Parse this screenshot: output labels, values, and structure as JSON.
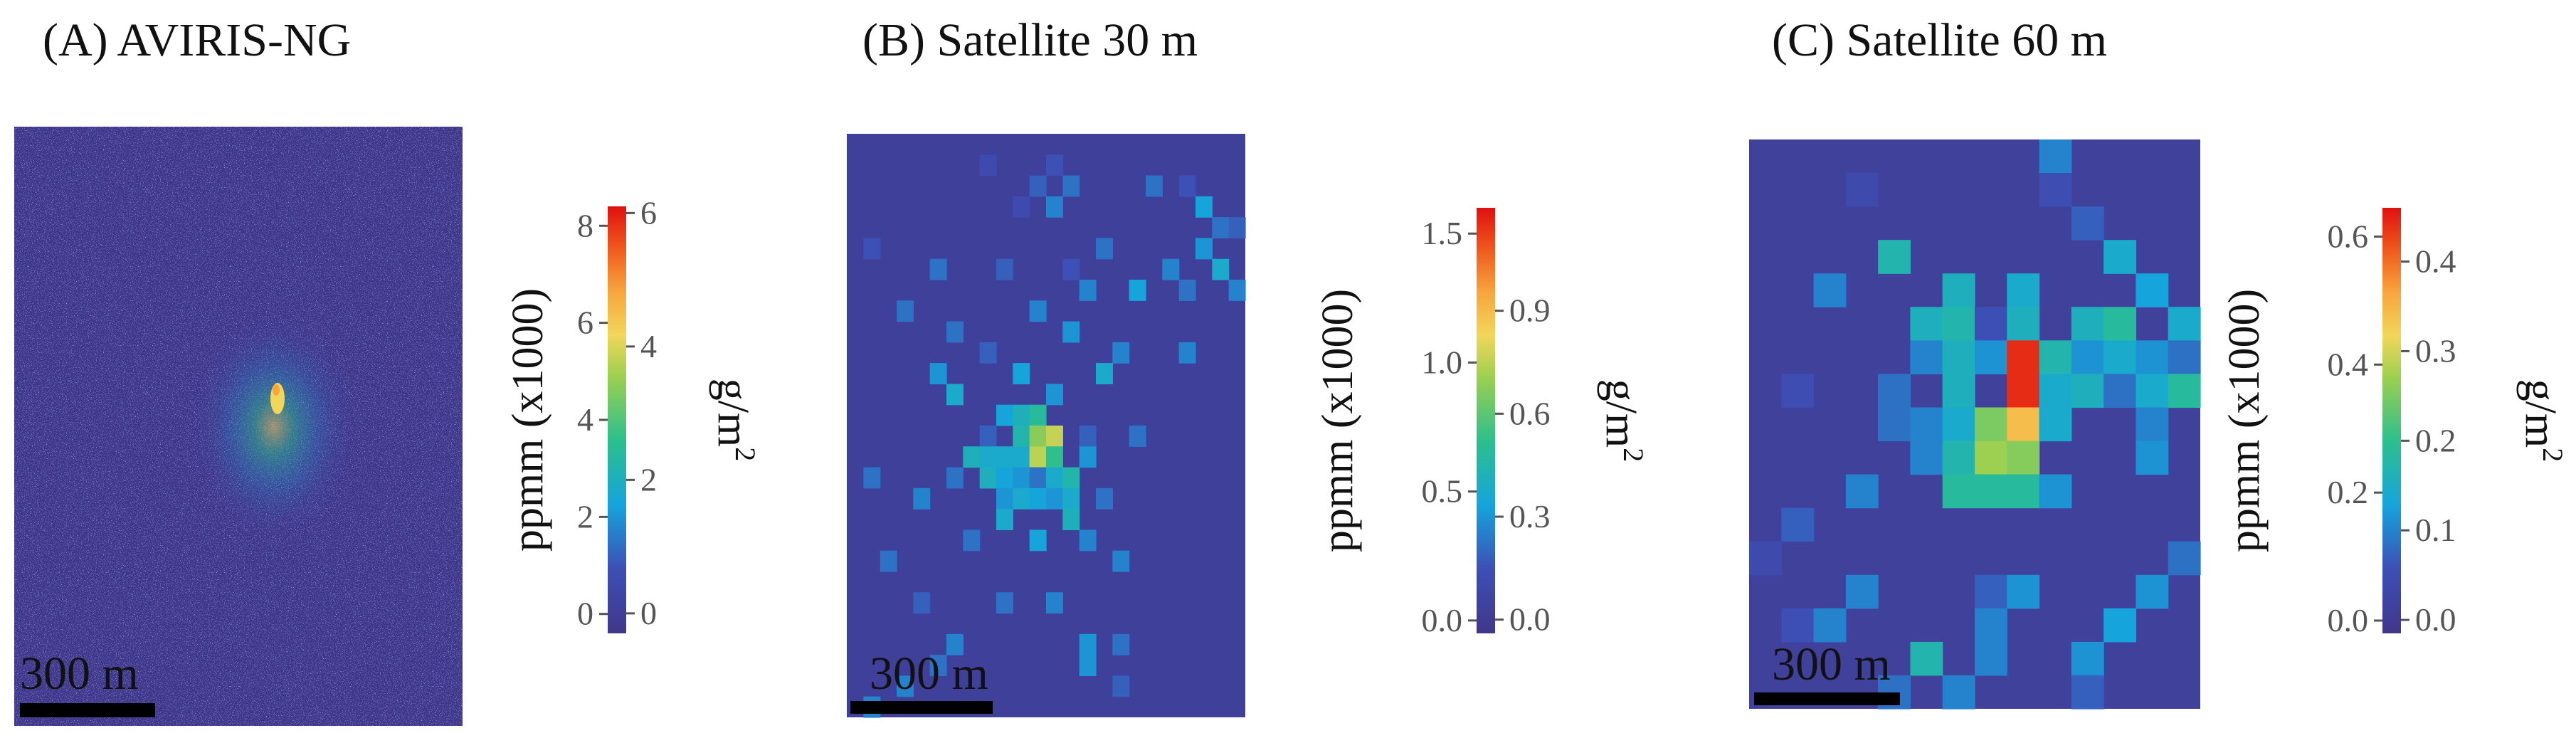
{
  "chart_data": [
    {
      "type": "heatmap",
      "title": "(A) AVIRIS-NG",
      "scale_bar_label": "300 m",
      "colorbar": {
        "left_label": "ppmm (x1000)",
        "right_label": "g/m",
        "right_label_superscript": "2",
        "left_range": [
          -0.4,
          8.4
        ],
        "right_range": [
          -0.3,
          6.1
        ],
        "left_ticks": [
          "0",
          "2",
          "4",
          "6",
          "8"
        ],
        "right_ticks": [
          "0",
          "2",
          "4",
          "6"
        ]
      },
      "texture": "fine speckle",
      "plume_center": [
        0.55,
        0.45
      ],
      "pixel_grid": [],
      "background_value": 0.05
    },
    {
      "type": "heatmap",
      "title": "(B) Satellite 30 m",
      "scale_bar_label": "300 m",
      "colorbar": {
        "left_label": "ppmm (x1000)",
        "right_label": "g/m",
        "right_label_superscript": "2",
        "left_range": [
          -0.05,
          1.6
        ],
        "right_range": [
          -0.04,
          1.2
        ],
        "left_ticks": [
          "0.0",
          "0.5",
          "1.0",
          "1.5"
        ],
        "right_ticks": [
          "0.0",
          "0.3",
          "0.6",
          "0.9"
        ]
      },
      "grid_cols": 24,
      "grid_rows": 28,
      "background_value": 0.04,
      "pixels": [
        [
          8,
          1,
          0.15
        ],
        [
          12,
          1,
          0.2
        ],
        [
          11,
          2,
          0.25
        ],
        [
          13,
          2,
          0.3
        ],
        [
          10,
          3,
          0.15
        ],
        [
          12,
          3,
          0.35
        ],
        [
          18,
          2,
          0.3
        ],
        [
          20,
          2,
          0.2
        ],
        [
          21,
          3,
          0.45
        ],
        [
          22,
          4,
          0.3
        ],
        [
          23,
          4,
          0.25
        ],
        [
          1,
          5,
          0.2
        ],
        [
          15,
          5,
          0.3
        ],
        [
          21,
          5,
          0.4
        ],
        [
          22,
          6,
          0.5
        ],
        [
          5,
          6,
          0.3
        ],
        [
          9,
          6,
          0.25
        ],
        [
          13,
          6,
          0.2
        ],
        [
          19,
          6,
          0.35
        ],
        [
          14,
          7,
          0.35
        ],
        [
          17,
          7,
          0.45
        ],
        [
          20,
          7,
          0.3
        ],
        [
          23,
          7,
          0.35
        ],
        [
          3,
          8,
          0.3
        ],
        [
          11,
          8,
          0.35
        ],
        [
          6,
          9,
          0.3
        ],
        [
          13,
          9,
          0.4
        ],
        [
          8,
          10,
          0.25
        ],
        [
          16,
          10,
          0.35
        ],
        [
          20,
          10,
          0.35
        ],
        [
          5,
          11,
          0.4
        ],
        [
          10,
          11,
          0.45
        ],
        [
          15,
          11,
          0.5
        ],
        [
          6,
          12,
          0.5
        ],
        [
          12,
          12,
          0.4
        ],
        [
          9,
          13,
          0.45
        ],
        [
          10,
          13,
          0.55
        ],
        [
          11,
          13,
          0.65
        ],
        [
          8,
          14,
          0.25
        ],
        [
          10,
          14,
          0.6
        ],
        [
          11,
          14,
          0.9
        ],
        [
          12,
          14,
          1.02
        ],
        [
          14,
          14,
          0.25
        ],
        [
          17,
          14,
          0.3
        ],
        [
          7,
          15,
          0.55
        ],
        [
          8,
          15,
          0.5
        ],
        [
          9,
          15,
          0.5
        ],
        [
          10,
          15,
          0.5
        ],
        [
          11,
          15,
          1.0
        ],
        [
          12,
          15,
          0.7
        ],
        [
          14,
          15,
          0.4
        ],
        [
          1,
          16,
          0.3
        ],
        [
          6,
          16,
          0.3
        ],
        [
          8,
          16,
          0.55
        ],
        [
          9,
          16,
          0.45
        ],
        [
          10,
          16,
          0.4
        ],
        [
          11,
          16,
          0.3
        ],
        [
          12,
          16,
          0.5
        ],
        [
          13,
          16,
          0.6
        ],
        [
          4,
          17,
          0.35
        ],
        [
          9,
          17,
          0.4
        ],
        [
          10,
          17,
          0.5
        ],
        [
          11,
          17,
          0.45
        ],
        [
          12,
          17,
          0.4
        ],
        [
          13,
          17,
          0.5
        ],
        [
          15,
          17,
          0.3
        ],
        [
          9,
          18,
          0.5
        ],
        [
          13,
          18,
          0.55
        ],
        [
          7,
          19,
          0.3
        ],
        [
          11,
          19,
          0.45
        ],
        [
          14,
          19,
          0.35
        ],
        [
          2,
          20,
          0.3
        ],
        [
          16,
          20,
          0.35
        ],
        [
          4,
          22,
          0.25
        ],
        [
          9,
          22,
          0.3
        ],
        [
          12,
          22,
          0.35
        ],
        [
          6,
          24,
          0.35
        ],
        [
          14,
          24,
          0.4
        ],
        [
          16,
          24,
          0.3
        ],
        [
          5,
          25,
          0.3
        ],
        [
          14,
          25,
          0.4
        ],
        [
          3,
          26,
          0.35
        ],
        [
          1,
          27,
          0.35
        ],
        [
          16,
          26,
          0.25
        ]
      ]
    },
    {
      "type": "heatmap",
      "title": "(C) Satellite 60 m",
      "scale_bar_label": "300 m",
      "colorbar": {
        "left_label": "ppmm (x1000)",
        "right_label": "g/m",
        "right_label_superscript": "2",
        "left_range": [
          -0.02,
          0.645
        ],
        "right_range": [
          -0.015,
          0.46
        ],
        "left_ticks": [
          "0.0",
          "0.2",
          "0.4",
          "0.6"
        ],
        "right_ticks": [
          "0.0",
          "0.1",
          "0.2",
          "0.3",
          "0.4"
        ]
      },
      "grid_cols": 14,
      "grid_rows": 17,
      "background_value": 0.02,
      "pixels": [
        [
          9,
          0,
          0.14
        ],
        [
          3,
          1,
          0.06
        ],
        [
          9,
          1,
          0.07
        ],
        [
          10,
          2,
          0.1
        ],
        [
          4,
          3,
          0.24
        ],
        [
          11,
          3,
          0.2
        ],
        [
          2,
          4,
          0.14
        ],
        [
          6,
          4,
          0.22
        ],
        [
          8,
          4,
          0.2
        ],
        [
          12,
          4,
          0.18
        ],
        [
          5,
          5,
          0.22
        ],
        [
          6,
          5,
          0.24
        ],
        [
          7,
          5,
          0.08
        ],
        [
          8,
          5,
          0.22
        ],
        [
          10,
          5,
          0.22
        ],
        [
          11,
          5,
          0.26
        ],
        [
          13,
          5,
          0.2
        ],
        [
          5,
          6,
          0.14
        ],
        [
          6,
          6,
          0.22
        ],
        [
          7,
          6,
          0.16
        ],
        [
          8,
          6,
          0.62
        ],
        [
          9,
          6,
          0.24
        ],
        [
          10,
          6,
          0.16
        ],
        [
          11,
          6,
          0.2
        ],
        [
          12,
          6,
          0.16
        ],
        [
          13,
          6,
          0.12
        ],
        [
          1,
          7,
          0.07
        ],
        [
          4,
          7,
          0.12
        ],
        [
          6,
          7,
          0.22
        ],
        [
          8,
          7,
          0.62
        ],
        [
          9,
          7,
          0.2
        ],
        [
          10,
          7,
          0.22
        ],
        [
          11,
          7,
          0.12
        ],
        [
          12,
          7,
          0.2
        ],
        [
          13,
          7,
          0.26
        ],
        [
          4,
          8,
          0.12
        ],
        [
          5,
          8,
          0.14
        ],
        [
          6,
          8,
          0.2
        ],
        [
          7,
          8,
          0.35
        ],
        [
          8,
          8,
          0.48
        ],
        [
          9,
          8,
          0.2
        ],
        [
          12,
          8,
          0.14
        ],
        [
          5,
          9,
          0.14
        ],
        [
          6,
          9,
          0.24
        ],
        [
          7,
          9,
          0.38
        ],
        [
          8,
          9,
          0.36
        ],
        [
          12,
          9,
          0.16
        ],
        [
          6,
          10,
          0.26
        ],
        [
          7,
          10,
          0.26
        ],
        [
          8,
          10,
          0.26
        ],
        [
          9,
          10,
          0.16
        ],
        [
          3,
          10,
          0.14
        ],
        [
          1,
          11,
          0.1
        ],
        [
          0,
          12,
          0.06
        ],
        [
          13,
          12,
          0.12
        ],
        [
          3,
          13,
          0.14
        ],
        [
          7,
          13,
          0.1
        ],
        [
          8,
          13,
          0.16
        ],
        [
          12,
          13,
          0.16
        ],
        [
          1,
          14,
          0.08
        ],
        [
          2,
          14,
          0.14
        ],
        [
          7,
          14,
          0.14
        ],
        [
          11,
          14,
          0.18
        ],
        [
          5,
          15,
          0.24
        ],
        [
          7,
          15,
          0.14
        ],
        [
          10,
          15,
          0.16
        ],
        [
          4,
          16,
          0.12
        ],
        [
          10,
          16,
          0.1
        ],
        [
          6,
          16,
          0.14
        ]
      ]
    }
  ]
}
